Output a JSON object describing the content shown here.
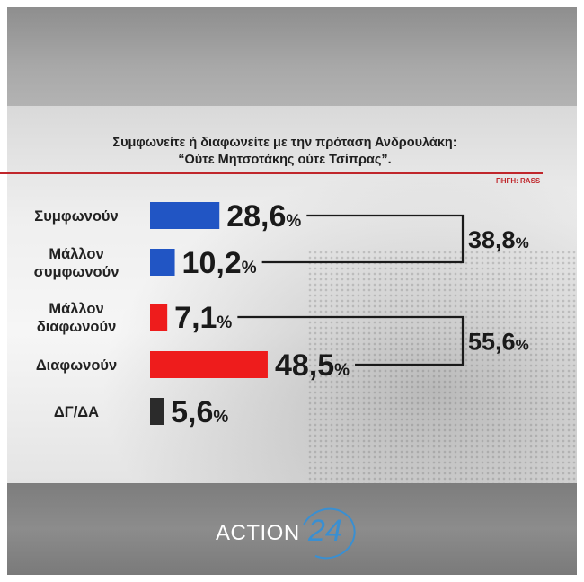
{
  "header": {
    "question_line1": "Συμφωνείτε ή διαφωνείτε με την πρόταση Ανδρουλάκη:",
    "question_line2": "“Ούτε Μητσοτάκης ούτε Τσίπρας”.",
    "source": "ΠΗΓΗ: RASS"
  },
  "colors": {
    "agree": "#2155c4",
    "disagree": "#ee1c1c",
    "dk": "#2b2b2b",
    "accent_rule": "#c0262b"
  },
  "chart_data": {
    "type": "bar",
    "orientation": "horizontal",
    "categories": [
      {
        "line1": "Συμφωνούν",
        "line2": ""
      },
      {
        "line1": "Μάλλον",
        "line2": "συμφωνούν"
      },
      {
        "line1": "Μάλλον",
        "line2": "διαφωνούν"
      },
      {
        "line1": "Διαφωνούν",
        "line2": ""
      },
      {
        "line1": "ΔΓ/ΔΑ",
        "line2": ""
      }
    ],
    "values": [
      28.6,
      10.2,
      7.1,
      48.5,
      5.6
    ],
    "value_labels": [
      "28,6",
      "10,2",
      "7,1",
      "48,5",
      "5,6"
    ],
    "unit": "%",
    "bar_colors": [
      "#2155c4",
      "#2155c4",
      "#ee1c1c",
      "#ee1c1c",
      "#2b2b2b"
    ],
    "groups": [
      {
        "members": [
          0,
          1
        ],
        "total": 38.8,
        "total_label": "38,8"
      },
      {
        "members": [
          2,
          3
        ],
        "total": 55.6,
        "total_label": "55,6"
      }
    ]
  },
  "footer": {
    "brand_text": "ACTION",
    "brand_number": "24"
  }
}
